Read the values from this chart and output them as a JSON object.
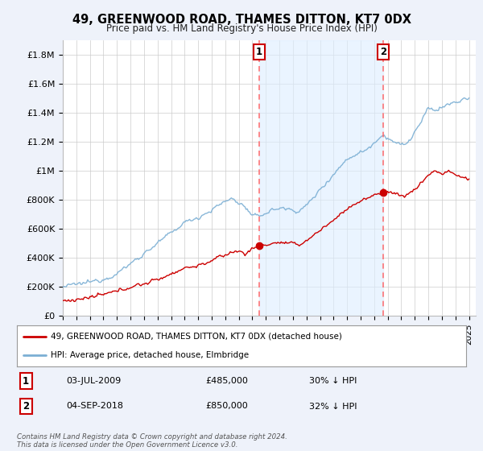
{
  "title": "49, GREENWOOD ROAD, THAMES DITTON, KT7 0DX",
  "subtitle": "Price paid vs. HM Land Registry's House Price Index (HPI)",
  "xlim_start": 1995.0,
  "xlim_end": 2025.5,
  "ylim_min": 0,
  "ylim_max": 1900000,
  "yticks": [
    0,
    200000,
    400000,
    600000,
    800000,
    1000000,
    1200000,
    1400000,
    1600000,
    1800000
  ],
  "ytick_labels": [
    "£0",
    "£200K",
    "£400K",
    "£600K",
    "£800K",
    "£1M",
    "£1.2M",
    "£1.4M",
    "£1.6M",
    "£1.8M"
  ],
  "sale1_x": 2009.5,
  "sale1_y": 485000,
  "sale2_x": 2018.67,
  "sale2_y": 850000,
  "legend_line1": "49, GREENWOOD ROAD, THAMES DITTON, KT7 0DX (detached house)",
  "legend_line2": "HPI: Average price, detached house, Elmbridge",
  "annotation1_num": "1",
  "annotation1_date": "03-JUL-2009",
  "annotation1_price": "£485,000",
  "annotation1_hpi": "30% ↓ HPI",
  "annotation2_num": "2",
  "annotation2_date": "04-SEP-2018",
  "annotation2_price": "£850,000",
  "annotation2_hpi": "32% ↓ HPI",
  "copyright_text": "Contains HM Land Registry data © Crown copyright and database right 2024.\nThis data is licensed under the Open Government Licence v3.0.",
  "hpi_color": "#7bafd4",
  "price_color": "#cc0000",
  "shade_color": "#ddeeff",
  "dashed_line_color": "#ff6666",
  "background_color": "#eef2fa",
  "plot_bg_color": "#ffffff"
}
